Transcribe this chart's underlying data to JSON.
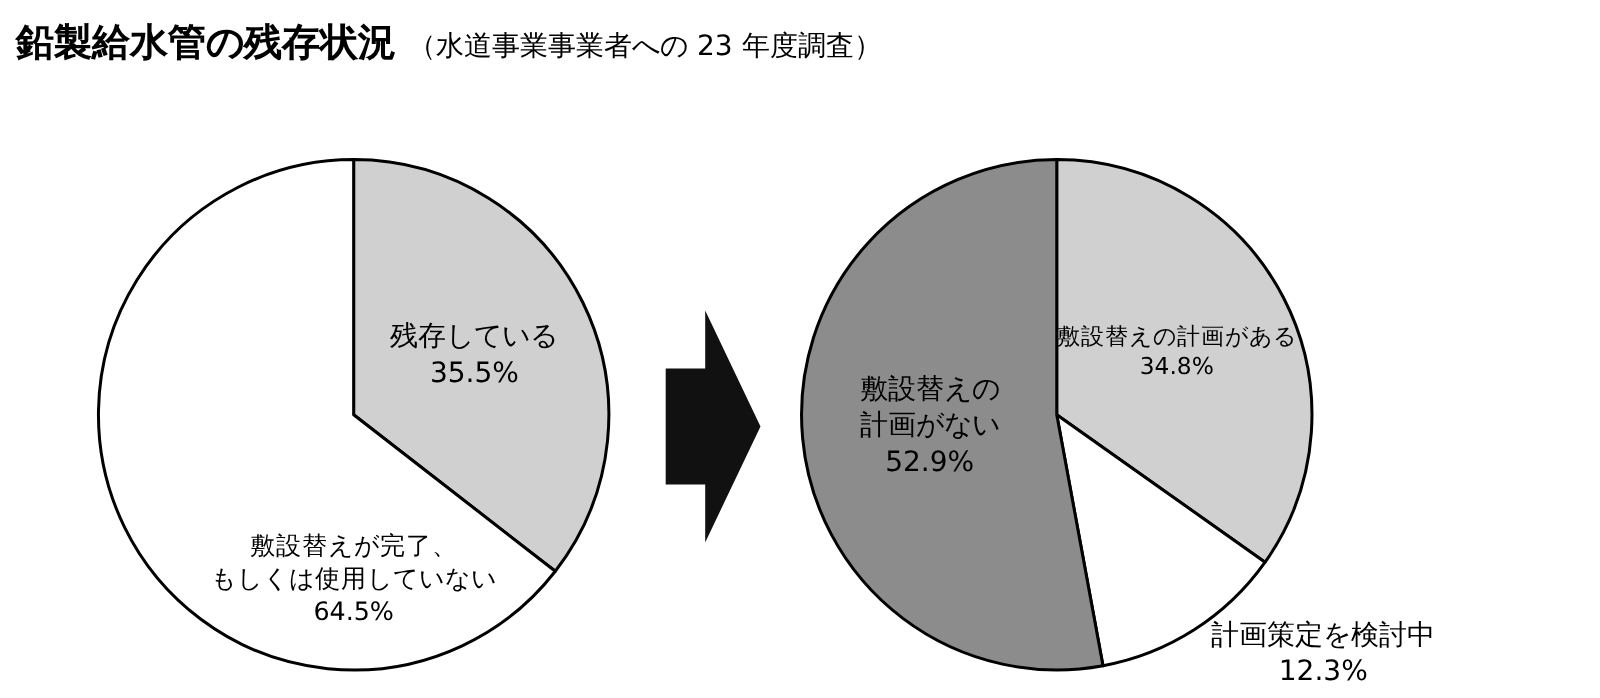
{
  "chart_data": [
    {
      "type": "pie",
      "title": "鉛製給水管の残存状況",
      "subtitle": "（水道事業事業者への 23 年度調査）",
      "categories": [
        "残存している",
        "敷設替えが完了、もしくは使用していない"
      ],
      "values": [
        35.5,
        64.5
      ],
      "value_labels": [
        "35.5%",
        "64.5%"
      ],
      "colors": [
        "#d0d0d0",
        "#ffffff"
      ]
    },
    {
      "type": "pie",
      "categories": [
        "敷設替えの計画がある",
        "計画策定を検討中",
        "敷設替えの計画がない"
      ],
      "values": [
        34.8,
        12.3,
        52.9
      ],
      "value_labels": [
        "34.8%",
        "12.3%",
        "52.9%"
      ],
      "colors": [
        "#d0d0d0",
        "#ffffff",
        "#8c8c8c"
      ]
    }
  ]
}
